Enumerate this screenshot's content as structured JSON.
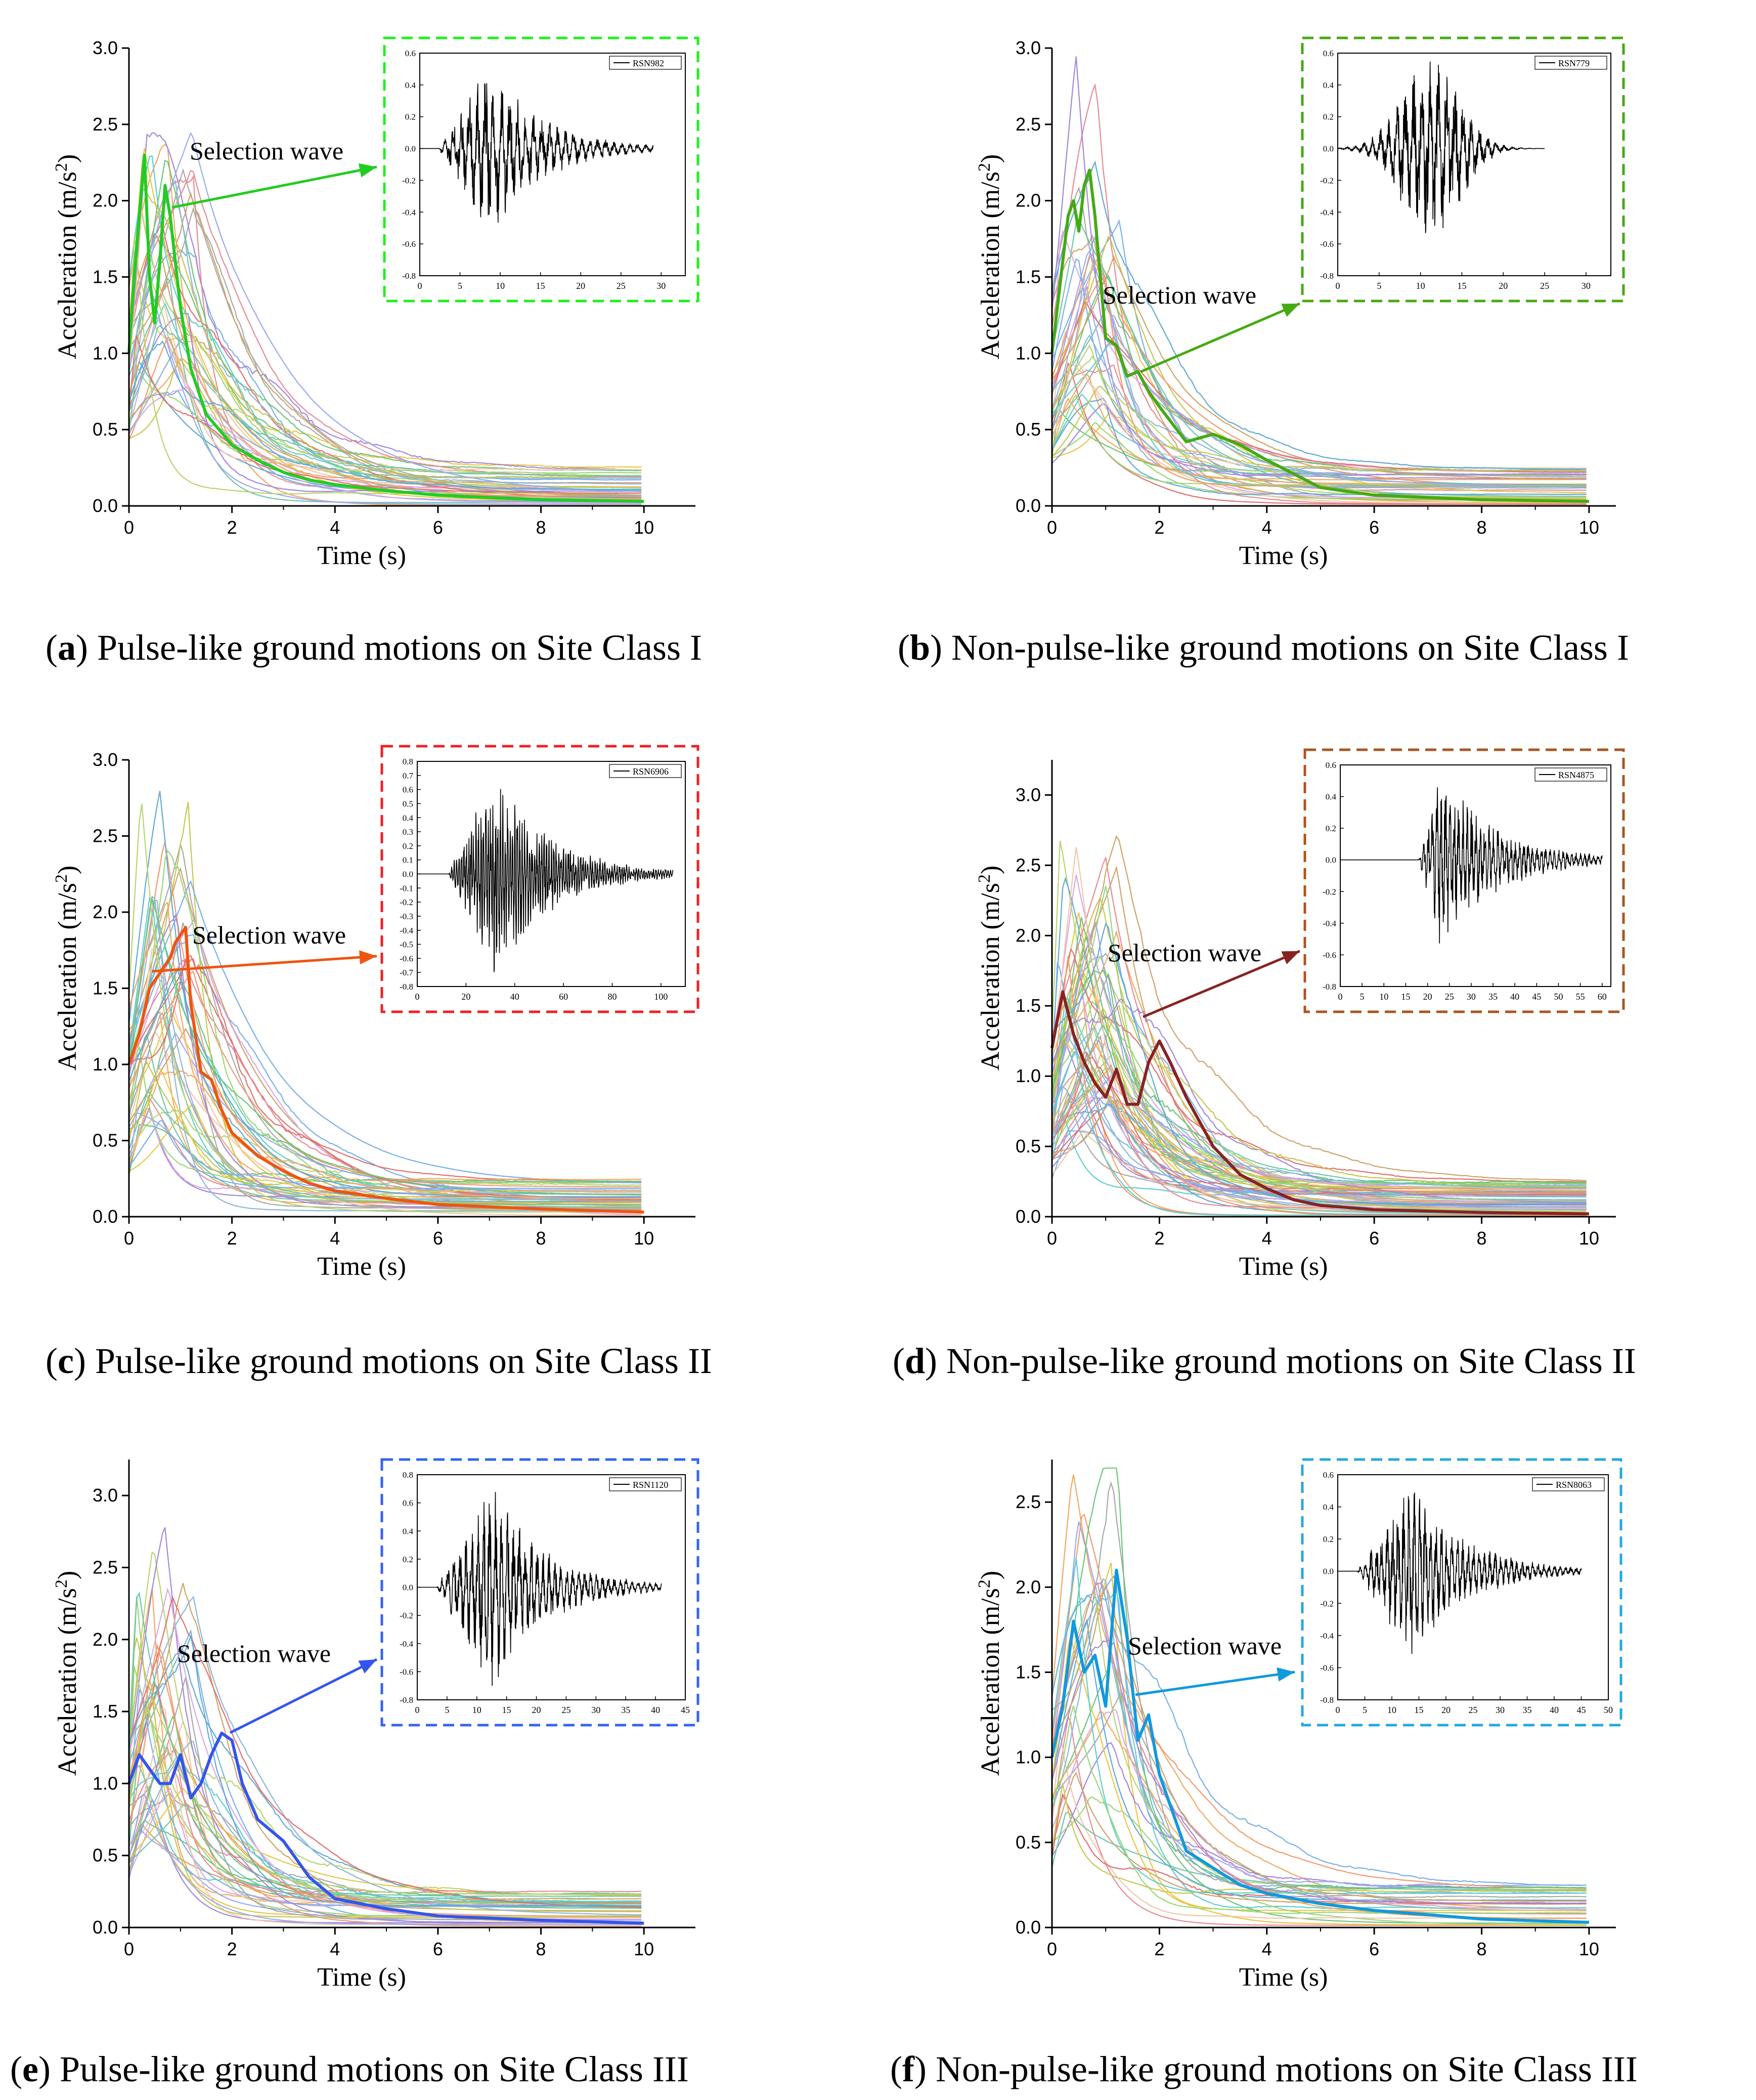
{
  "figure": {
    "annotation_text": "Selection wave",
    "x_axis_label": "Time (s)",
    "y_axis_label_main": "Acceleration (m/s",
    "y_axis_label_sup": "2",
    "y_axis_label_end": ")"
  },
  "chart_data": [
    {
      "panel": "a",
      "type": "line",
      "caption_letter": "a",
      "caption_text": "Pulse-like ground motions on Site Class I",
      "xlabel": "Time (s)",
      "ylabel": "Acceleration (m/s2)",
      "xlim": [
        0,
        11
      ],
      "ylim": [
        0,
        3.0
      ],
      "x_ticks": [
        "0",
        "2",
        "4",
        "6",
        "8",
        "10"
      ],
      "y_ticks": [
        "0.0",
        "0.5",
        "1.0",
        "1.5",
        "2.0",
        "2.5",
        "3.0"
      ],
      "highlight_color": "#22cc22",
      "background_series_count": 40,
      "selected_series": {
        "name": "Selection wave",
        "x": [
          0,
          0.1,
          0.2,
          0.3,
          0.4,
          0.5,
          0.6,
          0.7,
          0.8,
          1.0,
          1.2,
          1.5,
          2.0,
          2.5,
          3.0,
          3.5,
          4.0,
          5.0,
          6.0,
          8.0,
          10.0
        ],
        "y": [
          1.0,
          1.5,
          1.9,
          2.3,
          1.5,
          1.2,
          1.6,
          2.1,
          1.9,
          1.3,
          0.9,
          0.6,
          0.4,
          0.3,
          0.22,
          0.17,
          0.14,
          0.1,
          0.07,
          0.04,
          0.03
        ]
      },
      "inset": {
        "legend": "RSN982",
        "xlim": [
          0,
          33
        ],
        "ylim": [
          -0.8,
          0.6
        ],
        "x_ticks": [
          "0",
          "5",
          "10",
          "15",
          "20",
          "25",
          "30"
        ],
        "y_ticks": [
          "-0.8",
          "-0.6",
          "-0.4",
          "-0.2",
          "0.0",
          "0.2",
          "0.4",
          "0.6"
        ],
        "duration": 29,
        "border_color": "#22ee22"
      }
    },
    {
      "panel": "b",
      "type": "line",
      "caption_letter": "b",
      "caption_text": "Non-pulse-like ground motions on Site Class I",
      "xlabel": "Time (s)",
      "ylabel": "Acceleration (m/s2)",
      "xlim": [
        0,
        10.5
      ],
      "ylim": [
        0,
        3.0
      ],
      "x_ticks": [
        "0",
        "2",
        "4",
        "6",
        "8",
        "10"
      ],
      "y_ticks": [
        "0.0",
        "0.5",
        "1.0",
        "1.5",
        "2.0",
        "2.5",
        "3.0"
      ],
      "highlight_color": "#44aa11",
      "background_series_count": 40,
      "selected_series": {
        "name": "Selection wave",
        "x": [
          0,
          0.1,
          0.2,
          0.3,
          0.4,
          0.5,
          0.6,
          0.7,
          0.8,
          1.0,
          1.2,
          1.4,
          1.6,
          1.8,
          2.0,
          2.5,
          3.0,
          3.5,
          4.0,
          5.0,
          6.0,
          8.0,
          10.0
        ],
        "y": [
          1.0,
          1.3,
          1.6,
          1.9,
          2.0,
          1.8,
          2.1,
          2.2,
          1.9,
          1.1,
          1.05,
          0.85,
          0.88,
          0.75,
          0.65,
          0.42,
          0.47,
          0.4,
          0.3,
          0.12,
          0.07,
          0.04,
          0.03
        ]
      },
      "inset": {
        "legend": "RSN779",
        "xlim": [
          0,
          33
        ],
        "ylim": [
          -0.8,
          0.6
        ],
        "x_ticks": [
          "0",
          "5",
          "10",
          "15",
          "20",
          "25",
          "30"
        ],
        "y_ticks": [
          "-0.8",
          "-0.6",
          "-0.4",
          "-0.2",
          "0.0",
          "0.2",
          "0.4",
          "0.6"
        ],
        "duration": 25,
        "border_color": "#44aa11"
      }
    },
    {
      "panel": "c",
      "type": "line",
      "caption_letter": "c",
      "caption_text": "Pulse-like ground motions on Site Class II",
      "xlabel": "Time (s)",
      "ylabel": "Acceleration (m/s2)",
      "xlim": [
        0,
        11
      ],
      "ylim": [
        0,
        3.0
      ],
      "x_ticks": [
        "0",
        "2",
        "4",
        "6",
        "8",
        "10"
      ],
      "y_ticks": [
        "0.0",
        "0.5",
        "1.0",
        "1.5",
        "2.0",
        "2.5",
        "3.0"
      ],
      "highlight_color": "#ee5511",
      "background_series_count": 45,
      "selected_series": {
        "name": "Selection wave",
        "x": [
          0,
          0.2,
          0.4,
          0.6,
          0.8,
          0.9,
          1.0,
          1.1,
          1.2,
          1.4,
          1.6,
          1.8,
          2.0,
          2.5,
          3.0,
          3.5,
          4.0,
          5.0,
          6.0,
          8.0,
          10.0
        ],
        "y": [
          1.0,
          1.2,
          1.5,
          1.6,
          1.7,
          1.8,
          1.85,
          1.9,
          1.4,
          0.95,
          0.9,
          0.7,
          0.55,
          0.4,
          0.3,
          0.22,
          0.17,
          0.12,
          0.08,
          0.05,
          0.03
        ]
      },
      "inset": {
        "legend": "RSN6906",
        "xlim": [
          0,
          110
        ],
        "ylim": [
          -0.8,
          0.8
        ],
        "x_ticks": [
          "0",
          "20",
          "40",
          "60",
          "80",
          "100"
        ],
        "y_ticks": [
          "-0.8",
          "-0.7",
          "-0.6",
          "-0.5",
          "-0.4",
          "-0.3",
          "-0.2",
          "-0.1",
          "0.0",
          "0.1",
          "0.2",
          "0.3",
          "0.4",
          "0.5",
          "0.6",
          "0.7",
          "0.8"
        ],
        "duration": 105,
        "border_color": "#ee2222"
      }
    },
    {
      "panel": "d",
      "type": "line",
      "caption_letter": "d",
      "caption_text": "Non-pulse-like ground motions on Site Class II",
      "xlabel": "Time (s)",
      "ylabel": "Acceleration (m/s2)",
      "xlim": [
        0,
        10.5
      ],
      "ylim": [
        0,
        3.25
      ],
      "x_ticks": [
        "0",
        "2",
        "4",
        "6",
        "8",
        "10"
      ],
      "y_ticks": [
        "0.0",
        "0.5",
        "1.0",
        "1.5",
        "2.0",
        "2.5",
        "3.0"
      ],
      "highlight_color": "#882222",
      "background_series_count": 60,
      "selected_series": {
        "name": "Selection wave",
        "x": [
          0,
          0.2,
          0.4,
          0.6,
          0.8,
          1.0,
          1.2,
          1.4,
          1.6,
          1.8,
          2.0,
          2.2,
          2.5,
          3.0,
          3.5,
          4.0,
          4.5,
          5.0,
          6.0,
          8.0,
          10.0
        ],
        "y": [
          1.2,
          1.6,
          1.3,
          1.1,
          0.95,
          0.85,
          1.05,
          0.8,
          0.8,
          1.1,
          1.25,
          1.1,
          0.85,
          0.5,
          0.3,
          0.2,
          0.12,
          0.08,
          0.05,
          0.03,
          0.02
        ]
      },
      "inset": {
        "legend": "RSN4875",
        "xlim": [
          0,
          62
        ],
        "ylim": [
          -0.8,
          0.6
        ],
        "x_ticks": [
          "0",
          "5",
          "10",
          "15",
          "20",
          "25",
          "30",
          "35",
          "40",
          "45",
          "50",
          "55",
          "60"
        ],
        "y_ticks": [
          "-0.8",
          "-0.6",
          "-0.4",
          "-0.2",
          "0.0",
          "0.2",
          "0.4",
          "0.6"
        ],
        "duration": 60,
        "border_color": "#aa5522"
      }
    },
    {
      "panel": "e",
      "type": "line",
      "caption_letter": "e",
      "caption_text": "Pulse-like ground motions on Site Class III",
      "xlabel": "Time (s)",
      "ylabel": "Acceleration (m/s2)",
      "xlim": [
        0,
        11
      ],
      "ylim": [
        0,
        3.25
      ],
      "x_ticks": [
        "0",
        "2",
        "4",
        "6",
        "8",
        "10"
      ],
      "y_ticks": [
        "0.0",
        "0.5",
        "1.0",
        "1.5",
        "2.0",
        "2.5",
        "3.0"
      ],
      "highlight_color": "#3355ee",
      "background_series_count": 40,
      "selected_series": {
        "name": "Selection wave",
        "x": [
          0,
          0.2,
          0.4,
          0.6,
          0.8,
          1.0,
          1.2,
          1.4,
          1.6,
          1.8,
          2.0,
          2.2,
          2.5,
          3.0,
          3.5,
          4.0,
          5.0,
          6.0,
          8.0,
          10.0
        ],
        "y": [
          1.0,
          1.2,
          1.1,
          1.0,
          1.0,
          1.2,
          0.9,
          1.0,
          1.2,
          1.35,
          1.3,
          1.0,
          0.75,
          0.6,
          0.35,
          0.2,
          0.13,
          0.08,
          0.05,
          0.03
        ]
      },
      "inset": {
        "legend": "RSN1120",
        "xlim": [
          0,
          45
        ],
        "ylim": [
          -0.8,
          0.8
        ],
        "x_ticks": [
          "0",
          "5",
          "10",
          "15",
          "20",
          "25",
          "30",
          "35",
          "40",
          "45"
        ],
        "y_ticks": [
          "-0.8",
          "-0.6",
          "-0.4",
          "-0.2",
          "0.0",
          "0.2",
          "0.4",
          "0.6",
          "0.8"
        ],
        "duration": 41,
        "border_color": "#3366ee"
      }
    },
    {
      "panel": "f",
      "type": "line",
      "caption_letter": "f",
      "caption_text": "Non-pulse-like ground motions on Site Class III",
      "xlabel": "Time (s)",
      "ylabel": "Acceleration (m/s2)",
      "xlim": [
        0,
        10.5
      ],
      "ylim": [
        0,
        2.75
      ],
      "x_ticks": [
        "0",
        "2",
        "4",
        "6",
        "8",
        "10"
      ],
      "y_ticks": [
        "0.0",
        "0.5",
        "1.0",
        "1.5",
        "2.0",
        "2.5"
      ],
      "highlight_color": "#1199dd",
      "background_series_count": 30,
      "selected_series": {
        "name": "Selection wave",
        "x": [
          0,
          0.2,
          0.4,
          0.6,
          0.8,
          1.0,
          1.2,
          1.4,
          1.6,
          1.8,
          2.0,
          2.5,
          3.0,
          3.5,
          4.0,
          5.0,
          6.0,
          8.0,
          10.0
        ],
        "y": [
          1.0,
          1.3,
          1.8,
          1.5,
          1.6,
          1.3,
          2.1,
          1.7,
          1.1,
          1.25,
          0.9,
          0.45,
          0.35,
          0.25,
          0.2,
          0.14,
          0.1,
          0.05,
          0.03
        ]
      },
      "inset": {
        "legend": "RSN8063",
        "xlim": [
          0,
          50
        ],
        "ylim": [
          -0.8,
          0.6
        ],
        "x_ticks": [
          "0",
          "5",
          "10",
          "15",
          "20",
          "25",
          "30",
          "35",
          "40",
          "45",
          "50"
        ],
        "y_ticks": [
          "-0.8",
          "-0.6",
          "-0.4",
          "-0.2",
          "0.0",
          "0.2",
          "0.4",
          "0.6"
        ],
        "duration": 45,
        "border_color": "#22aadd"
      }
    }
  ]
}
